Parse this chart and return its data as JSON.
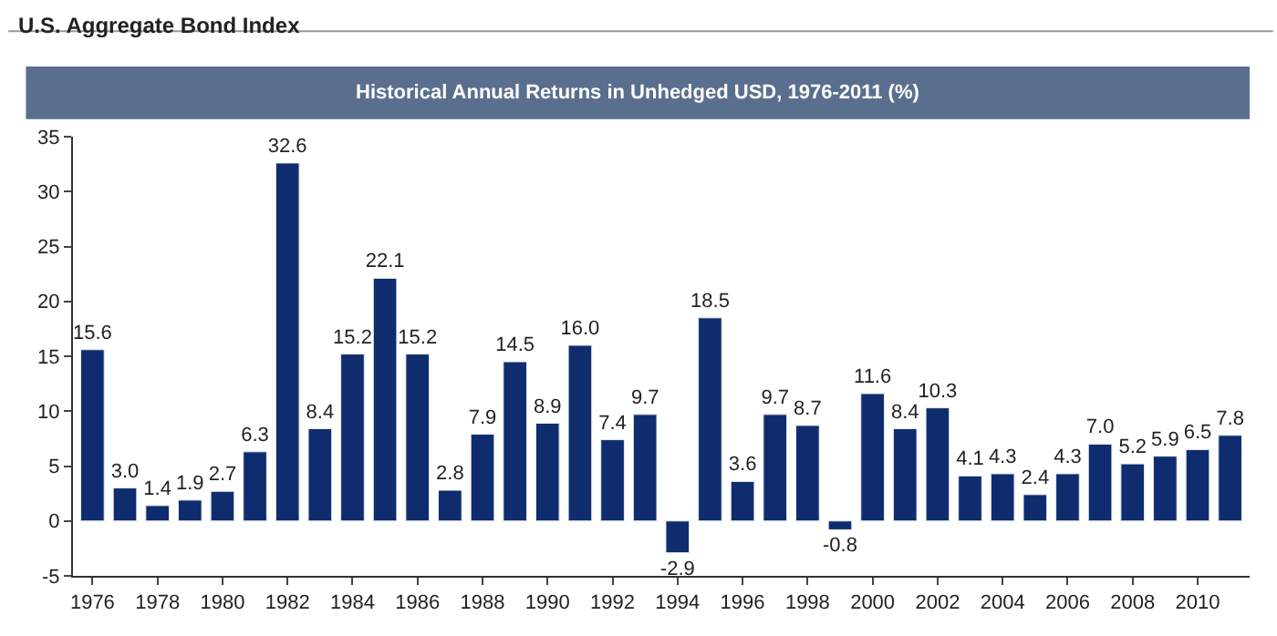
{
  "chart_data": {
    "type": "bar",
    "title": "U.S. Aggregate Bond Index",
    "subtitle": "Historical Annual Returns in Unhedged USD, 1976-2011 (%)",
    "categories": [
      "1976",
      null,
      "1978",
      null,
      "1980",
      null,
      "1982",
      null,
      "1984",
      null,
      "1986",
      null,
      "1988",
      null,
      "1990",
      null,
      "1992",
      null,
      "1994",
      null,
      "1996",
      null,
      "1998",
      null,
      "2000",
      null,
      "2002",
      null,
      "2004",
      null,
      "2006",
      null,
      "2008",
      null,
      "2010",
      null
    ],
    "values": [
      15.6,
      3.0,
      1.4,
      1.9,
      2.7,
      6.3,
      32.6,
      8.4,
      15.2,
      22.1,
      15.2,
      2.8,
      7.9,
      14.5,
      8.9,
      16.0,
      7.4,
      9.7,
      -2.9,
      18.5,
      3.6,
      9.7,
      8.7,
      -0.8,
      11.6,
      8.4,
      10.3,
      4.1,
      4.3,
      2.4,
      4.3,
      7.0,
      5.2,
      5.9,
      6.5,
      7.8
    ],
    "value_labels": [
      "15.6",
      "3.0",
      "1.4",
      "1.9",
      "2.7",
      "6.3",
      "32.6",
      "8.4",
      "15.2",
      "22.1",
      "15.2",
      "2.8",
      "7.9",
      "14.5",
      "8.9",
      "16.0",
      "7.4",
      "9.7",
      "-2.9",
      "18.5",
      "3.6",
      "9.7",
      "8.7",
      "-0.8",
      "11.6",
      "8.4",
      "10.3",
      "4.1",
      "4.3",
      "2.4",
      "4.3",
      "7.0",
      "5.2",
      "5.9",
      "6.5",
      "7.8"
    ],
    "color": "#0f2c6e",
    "ylim": [
      -5,
      35
    ],
    "yticks": [
      -5,
      0,
      5,
      10,
      15,
      20,
      25,
      30,
      35
    ]
  }
}
